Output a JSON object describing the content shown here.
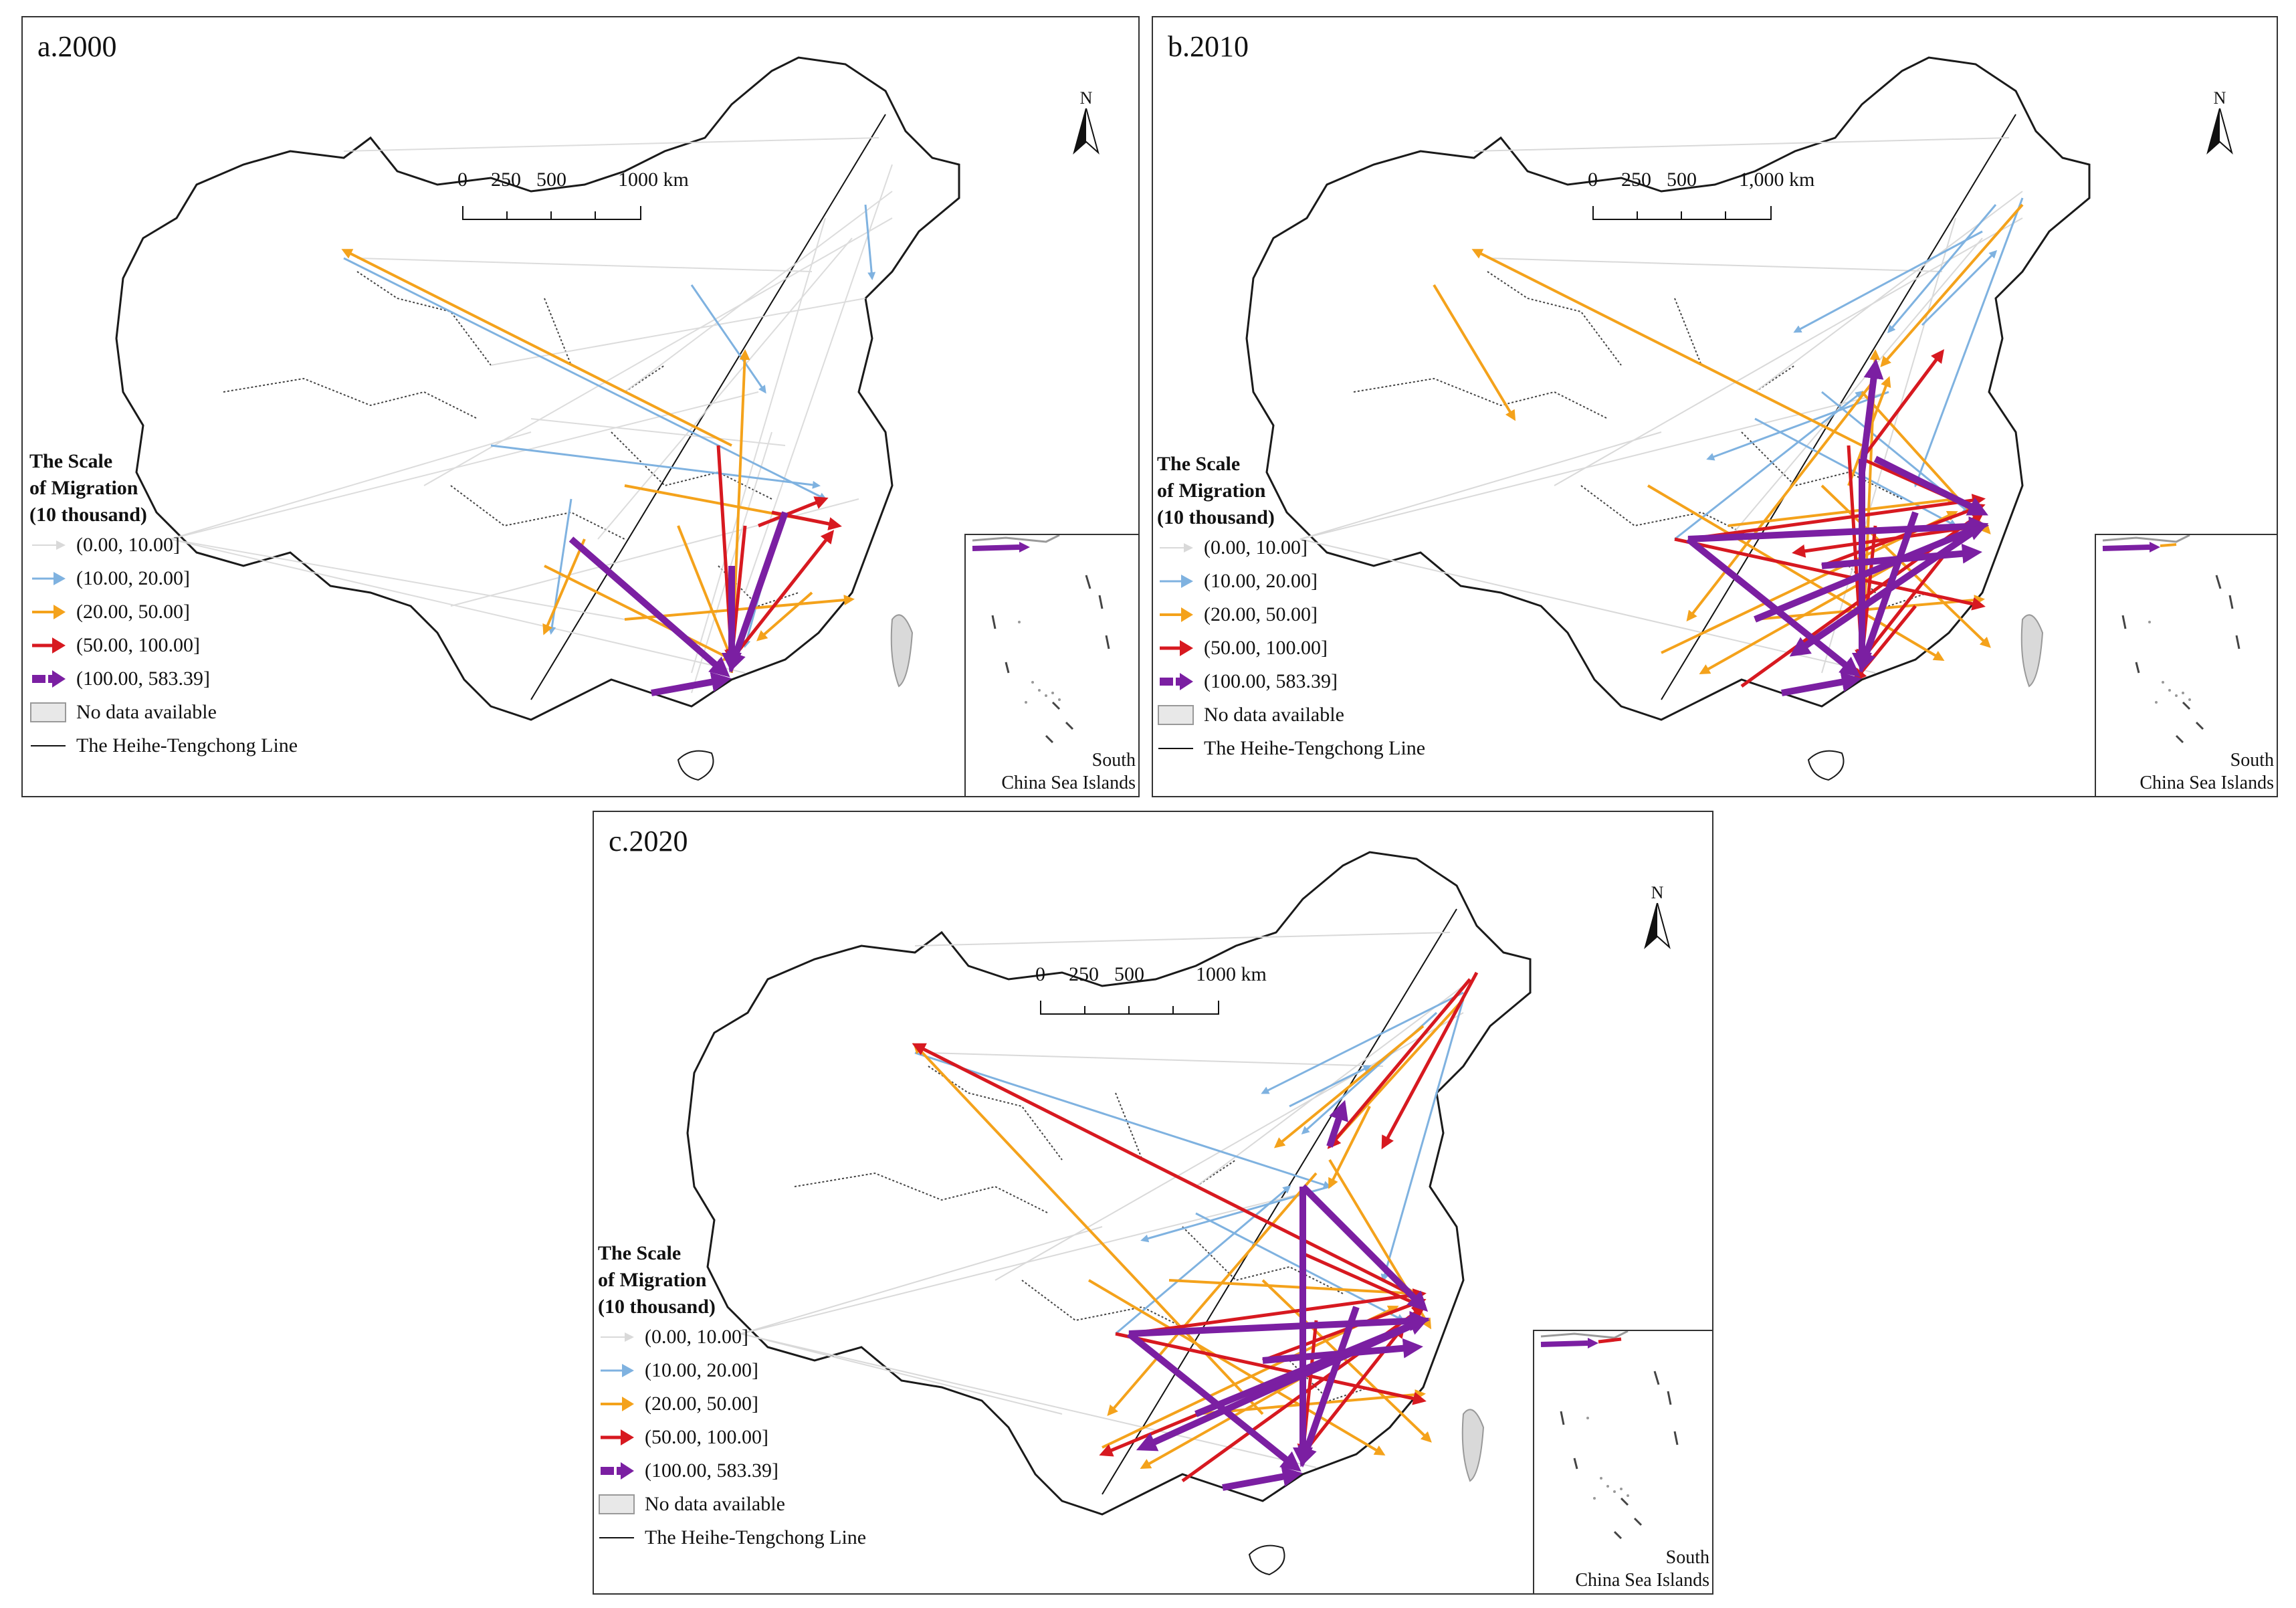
{
  "legend": {
    "title_line1": "The Scale",
    "title_line2": "of Migration",
    "title_line3": "(10 thousand)",
    "classes": [
      {
        "label": "(0.00, 10.00]",
        "color": "#d9d9d9"
      },
      {
        "label": "(10.00, 20.00]",
        "color": "#7fb2e0"
      },
      {
        "label": "(20.00, 50.00]",
        "color": "#f4a21b"
      },
      {
        "label": "(50.00, 100.00]",
        "color": "#d71920"
      },
      {
        "label": "(100.00, 583.39]",
        "color": "#7b1fa2"
      }
    ],
    "no_data_label": "No data available",
    "line_label": "The Heihe-Tengchong Line"
  },
  "north_label": "N",
  "inset_label_line1": "South",
  "inset_label_line2": "China Sea Islands",
  "panels": [
    {
      "title": "a.2000",
      "scale_labels": [
        "0",
        "250",
        "500",
        "1000 km"
      ]
    },
    {
      "title": "b.2010",
      "scale_labels": [
        "0",
        "250",
        "500",
        "1,000 km"
      ]
    },
    {
      "title": "c.2020",
      "scale_labels": [
        "0",
        "250",
        "500",
        "1000 km"
      ]
    }
  ]
}
